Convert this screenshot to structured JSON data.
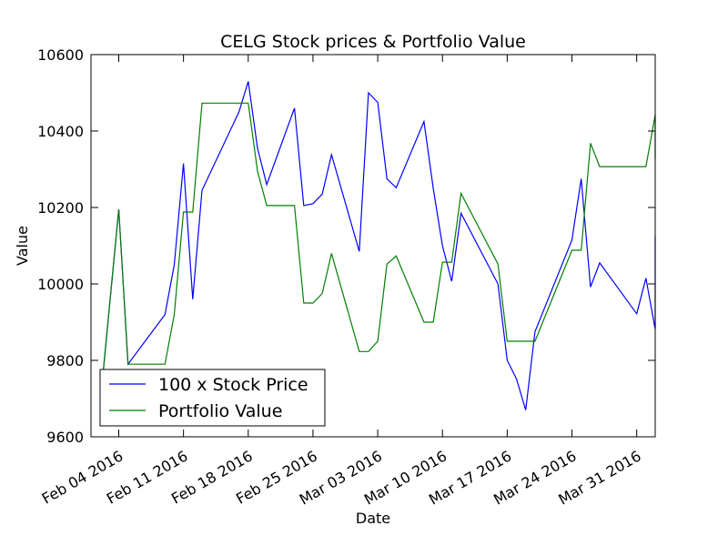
{
  "chart_data": {
    "type": "line",
    "title": "CELG Stock prices & Portfolio Value",
    "xlabel": "Date",
    "ylabel": "Value",
    "xlim": [
      "2016-02-01",
      "2016-04-02"
    ],
    "ylim": [
      9600,
      10600
    ],
    "grid": false,
    "legend_position": "lower-left",
    "x_ticks": [
      {
        "date": "2016-02-04",
        "label": "Feb 04 2016"
      },
      {
        "date": "2016-02-11",
        "label": "Feb 11 2016"
      },
      {
        "date": "2016-02-18",
        "label": "Feb 18 2016"
      },
      {
        "date": "2016-02-25",
        "label": "Feb 25 2016"
      },
      {
        "date": "2016-03-03",
        "label": "Mar 03 2016"
      },
      {
        "date": "2016-03-10",
        "label": "Mar 10 2016"
      },
      {
        "date": "2016-03-17",
        "label": "Mar 17 2016"
      },
      {
        "date": "2016-03-24",
        "label": "Mar 24 2016"
      },
      {
        "date": "2016-03-31",
        "label": "Mar 31 2016"
      }
    ],
    "y_ticks": [
      {
        "value": 9600,
        "label": "9600"
      },
      {
        "value": 9800,
        "label": "9800"
      },
      {
        "value": 10000,
        "label": "10000"
      },
      {
        "value": 10200,
        "label": "10200"
      },
      {
        "value": 10400,
        "label": "10400"
      },
      {
        "value": 10600,
        "label": "10600"
      }
    ],
    "series": [
      {
        "name": "100 x Stock Price",
        "color": "#0000ff",
        "points": [
          [
            "2016-02-02",
            9690
          ],
          [
            "2016-02-04",
            10195
          ],
          [
            "2016-02-05",
            9790
          ],
          [
            "2016-02-09",
            9920
          ],
          [
            "2016-02-10",
            10050
          ],
          [
            "2016-02-11",
            10315
          ],
          [
            "2016-02-12",
            9960
          ],
          [
            "2016-02-13",
            10245
          ],
          [
            "2016-02-17",
            10450
          ],
          [
            "2016-02-18",
            10530
          ],
          [
            "2016-02-19",
            10355
          ],
          [
            "2016-02-20",
            10260
          ],
          [
            "2016-02-23",
            10460
          ],
          [
            "2016-02-24",
            10205
          ],
          [
            "2016-02-25",
            10210
          ],
          [
            "2016-02-26",
            10235
          ],
          [
            "2016-02-27",
            10338
          ],
          [
            "2016-03-01",
            10085
          ],
          [
            "2016-03-02",
            10500
          ],
          [
            "2016-03-03",
            10475
          ],
          [
            "2016-03-04",
            10275
          ],
          [
            "2016-03-05",
            10252
          ],
          [
            "2016-03-08",
            10425
          ],
          [
            "2016-03-09",
            10250
          ],
          [
            "2016-03-10",
            10100
          ],
          [
            "2016-03-11",
            10007
          ],
          [
            "2016-03-12",
            10185
          ],
          [
            "2016-03-16",
            10000
          ],
          [
            "2016-03-17",
            9800
          ],
          [
            "2016-03-18",
            9752
          ],
          [
            "2016-03-19",
            9670
          ],
          [
            "2016-03-20",
            9875
          ],
          [
            "2016-03-24",
            10115
          ],
          [
            "2016-03-25",
            10275
          ],
          [
            "2016-03-26",
            9992
          ],
          [
            "2016-03-27",
            10055
          ],
          [
            "2016-03-31",
            9922
          ],
          [
            "2016-04-01",
            10015
          ],
          [
            "2016-04-02",
            9882
          ],
          [
            "2016-04-03",
            10010
          ],
          [
            "2016-04-04",
            10125
          ]
        ]
      },
      {
        "name": "Portfolio Value",
        "color": "#008000",
        "points": [
          [
            "2016-02-02",
            9690
          ],
          [
            "2016-02-04",
            10195
          ],
          [
            "2016-02-05",
            9790
          ],
          [
            "2016-02-09",
            9790
          ],
          [
            "2016-02-10",
            9920
          ],
          [
            "2016-02-11",
            10188
          ],
          [
            "2016-02-12",
            10188
          ],
          [
            "2016-02-13",
            10473
          ],
          [
            "2016-02-17",
            10473
          ],
          [
            "2016-02-18",
            10473
          ],
          [
            "2016-02-19",
            10295
          ],
          [
            "2016-02-20",
            10205
          ],
          [
            "2016-02-23",
            10205
          ],
          [
            "2016-02-24",
            9950
          ],
          [
            "2016-02-25",
            9950
          ],
          [
            "2016-02-26",
            9975
          ],
          [
            "2016-02-27",
            10080
          ],
          [
            "2016-03-01",
            9823
          ],
          [
            "2016-03-02",
            9823
          ],
          [
            "2016-03-03",
            9850
          ],
          [
            "2016-03-04",
            10052
          ],
          [
            "2016-03-05",
            10073
          ],
          [
            "2016-03-08",
            9900
          ],
          [
            "2016-03-09",
            9900
          ],
          [
            "2016-03-10",
            10057
          ],
          [
            "2016-03-11",
            10057
          ],
          [
            "2016-03-12",
            10237
          ],
          [
            "2016-03-16",
            10052
          ],
          [
            "2016-03-17",
            9850
          ],
          [
            "2016-03-18",
            9850
          ],
          [
            "2016-03-19",
            9850
          ],
          [
            "2016-03-20",
            9850
          ],
          [
            "2016-03-24",
            10088
          ],
          [
            "2016-03-25",
            10088
          ],
          [
            "2016-03-26",
            10368
          ],
          [
            "2016-03-27",
            10307
          ],
          [
            "2016-03-31",
            10307
          ],
          [
            "2016-04-01",
            10307
          ],
          [
            "2016-04-02",
            10442
          ],
          [
            "2016-04-03",
            10442
          ],
          [
            "2016-04-04",
            10328
          ]
        ]
      }
    ]
  }
}
